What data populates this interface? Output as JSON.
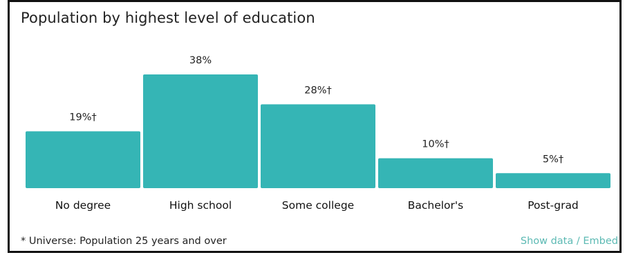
{
  "chart_data": {
    "type": "bar",
    "title": "Population by highest level of education",
    "categories": [
      "No degree",
      "High school",
      "Some college",
      "Bachelor's",
      "Post-grad"
    ],
    "values": [
      19,
      38,
      28,
      10,
      5
    ],
    "data_labels": [
      "19%†",
      "38%",
      "28%†",
      "10%†",
      "5%†"
    ],
    "ylim": [
      0,
      38
    ],
    "bar_color": "#35b5b5",
    "grid": false,
    "xlabel": "",
    "ylabel": ""
  },
  "footnote": "* Universe: Population 25 years and over",
  "links": {
    "show_data": "Show data",
    "separator": "/",
    "embed": "Embed"
  },
  "colors": {
    "link": "#5bb9b3",
    "text": "#222222"
  }
}
